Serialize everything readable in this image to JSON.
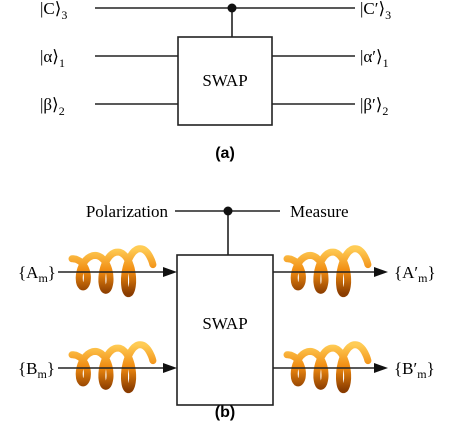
{
  "panel_a": {
    "inputs": [
      {
        "ket": "|C⟩",
        "sub": "3"
      },
      {
        "ket": "|α⟩",
        "sub": "1"
      },
      {
        "ket": "|β⟩",
        "sub": "2"
      }
    ],
    "outputs": [
      {
        "ket": "|C′⟩",
        "sub": "3"
      },
      {
        "ket": "|α′⟩",
        "sub": "1"
      },
      {
        "ket": "|β′⟩",
        "sub": "2"
      }
    ],
    "gate": "SWAP",
    "caption": "(a)"
  },
  "panel_b": {
    "control_left": "Polarization",
    "control_right": "Measure",
    "inputs": [
      {
        "open": "{A",
        "sub": "m",
        "close": "}"
      },
      {
        "open": "{B",
        "sub": "m",
        "close": "}"
      }
    ],
    "outputs": [
      {
        "open": "{A′",
        "sub": "m",
        "close": "}"
      },
      {
        "open": "{B′",
        "sub": "m",
        "close": "}"
      }
    ],
    "gate": "SWAP",
    "caption": "(b)"
  }
}
